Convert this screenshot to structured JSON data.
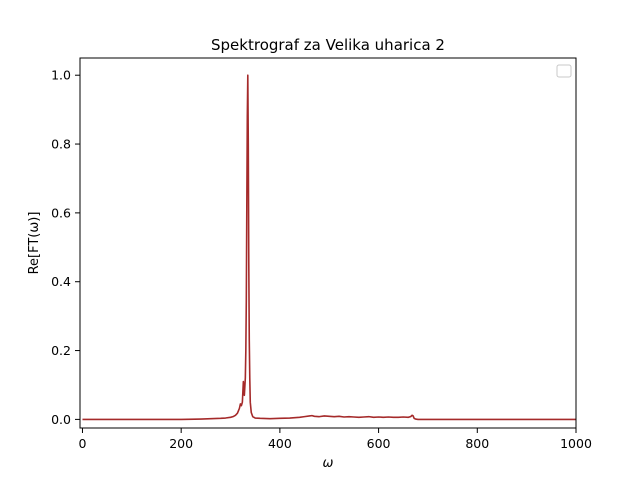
{
  "chart_data": {
    "type": "line",
    "title": "Spektrograf za Velika uharica 2",
    "xlabel": "ω",
    "ylabel": "Re[FT(ω)]",
    "xlim": [
      -5,
      1000
    ],
    "ylim": [
      -0.025,
      1.05
    ],
    "xticks": [
      0,
      200,
      400,
      600,
      800,
      1000
    ],
    "yticks": [
      0.0,
      0.2,
      0.4,
      0.6,
      0.8,
      1.0
    ],
    "xtick_labels": [
      "0",
      "200",
      "400",
      "600",
      "800",
      "1000"
    ],
    "ytick_labels": [
      "0.0",
      "0.2",
      "0.4",
      "0.6",
      "0.8",
      "1.0"
    ],
    "grid": false,
    "legend": {
      "location": "upper right",
      "entries": []
    },
    "series": [
      {
        "color": "#a52a2a",
        "x": [
          0,
          100,
          200,
          240,
          260,
          280,
          290,
          300,
          305,
          310,
          314,
          316,
          318,
          320,
          322,
          324,
          326,
          328,
          330,
          331,
          332,
          333,
          334,
          335,
          336,
          337,
          338,
          339,
          340,
          342,
          345,
          350,
          360,
          380,
          400,
          420,
          440,
          450,
          460,
          465,
          470,
          480,
          490,
          500,
          510,
          520,
          530,
          540,
          550,
          560,
          570,
          580,
          590,
          600,
          610,
          620,
          630,
          640,
          650,
          660,
          665,
          668,
          670,
          672,
          675,
          680,
          700,
          800,
          900,
          1000
        ],
        "y": [
          0.0,
          0.0,
          0.0,
          0.001,
          0.002,
          0.003,
          0.004,
          0.006,
          0.008,
          0.012,
          0.018,
          0.025,
          0.032,
          0.045,
          0.04,
          0.05,
          0.11,
          0.07,
          0.12,
          0.2,
          0.35,
          0.62,
          0.88,
          1.0,
          0.8,
          0.45,
          0.23,
          0.12,
          0.05,
          0.02,
          0.008,
          0.004,
          0.003,
          0.002,
          0.003,
          0.004,
          0.006,
          0.008,
          0.01,
          0.011,
          0.009,
          0.008,
          0.01,
          0.009,
          0.008,
          0.009,
          0.007,
          0.008,
          0.007,
          0.006,
          0.007,
          0.008,
          0.006,
          0.007,
          0.006,
          0.007,
          0.006,
          0.006,
          0.007,
          0.006,
          0.008,
          0.012,
          0.01,
          0.003,
          0.001,
          0.0,
          0.0,
          0.0,
          0.0,
          0.0
        ]
      }
    ]
  }
}
